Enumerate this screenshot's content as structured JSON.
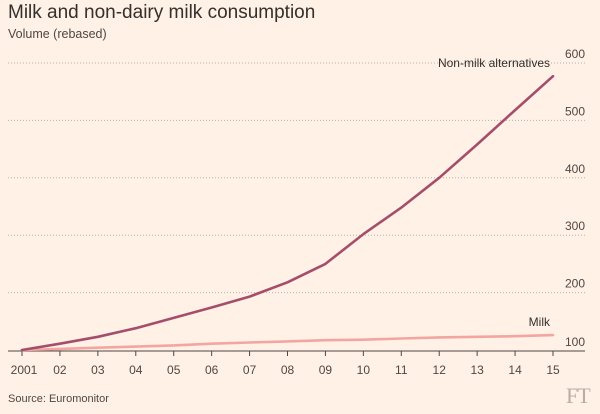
{
  "chart_data": {
    "type": "line",
    "title": "Milk and non-dairy milk consumption",
    "subtitle": "Volume (rebased)",
    "xlabel": "",
    "ylabel": "Volume (rebased)",
    "x": [
      "2001",
      "02",
      "03",
      "04",
      "05",
      "06",
      "07",
      "08",
      "09",
      "10",
      "11",
      "12",
      "13",
      "14",
      "15"
    ],
    "ylim": [
      100,
      600
    ],
    "yticks": [
      "100",
      "200",
      "300",
      "400",
      "500",
      "600"
    ],
    "grid": true,
    "series": [
      {
        "name": "Non-milk alternatives",
        "color": "#a44e6c",
        "values": [
          100,
          111,
          123,
          138,
          156,
          174,
          193,
          218,
          250,
          302,
          348,
          400,
          458,
          518,
          577
        ]
      },
      {
        "name": "Milk",
        "color": "#f3a6a1",
        "values": [
          100,
          102,
          104,
          106,
          108,
          111,
          113,
          115,
          117,
          118,
          120,
          122,
          123,
          124,
          126
        ]
      }
    ],
    "source": "Source: Euromonitor"
  },
  "brand": {
    "logo_text": "FT",
    "logo_color": "#b8aea5",
    "background": "#fff1e5"
  }
}
